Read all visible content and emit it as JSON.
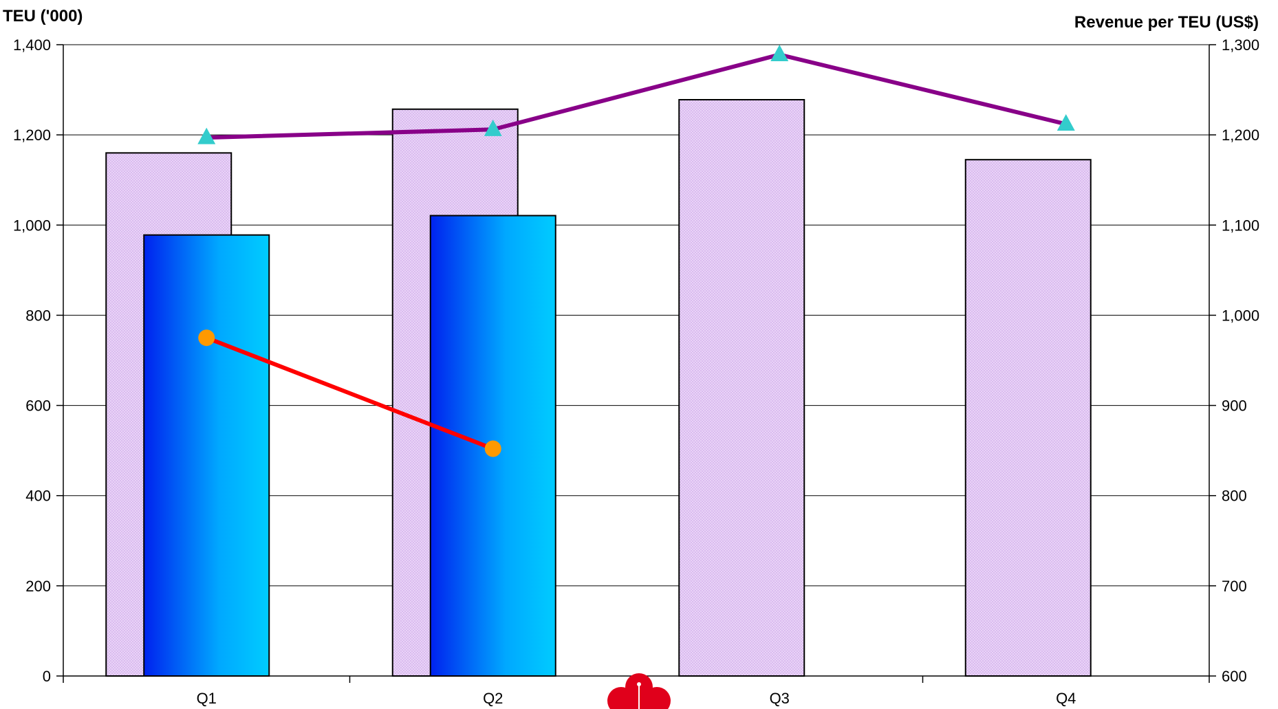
{
  "chart_data": {
    "type": "bar",
    "categories": [
      "Q1",
      "Q2",
      "Q3",
      "Q4"
    ],
    "ylabel": "TEU ('000)",
    "y2label": "Revenue per TEU (US$)",
    "ylim": [
      0,
      1400
    ],
    "y2lim": [
      600,
      1300
    ],
    "yticks": [
      "0",
      "200",
      "400",
      "600",
      "800",
      "1,000",
      "1,200",
      "1,400"
    ],
    "y2ticks": [
      "600",
      "700",
      "800",
      "900",
      "1,000",
      "1,100",
      "1,200",
      "1,300"
    ],
    "grid": true,
    "bar_series": [
      {
        "values": [
          1160,
          1257,
          1278,
          1145
        ],
        "color": "#e6cdf5",
        "pattern": "dotted"
      },
      {
        "values": [
          978,
          1021,
          null,
          null
        ],
        "color_start": "#0022ee",
        "color_end": "#00ccff"
      }
    ],
    "line_series": [
      {
        "axis": "right",
        "values": [
          1197,
          1206,
          1289,
          1212
        ],
        "color": "#880088",
        "marker": "triangle",
        "marker_color": "#33cccc"
      },
      {
        "axis": "right",
        "values": [
          975,
          852,
          null,
          null
        ],
        "color": "#ff0000",
        "marker": "circle",
        "marker_color": "#ff9900"
      }
    ],
    "logo": {
      "name": "plum-blossom-logo",
      "color": "#e0001b"
    }
  }
}
